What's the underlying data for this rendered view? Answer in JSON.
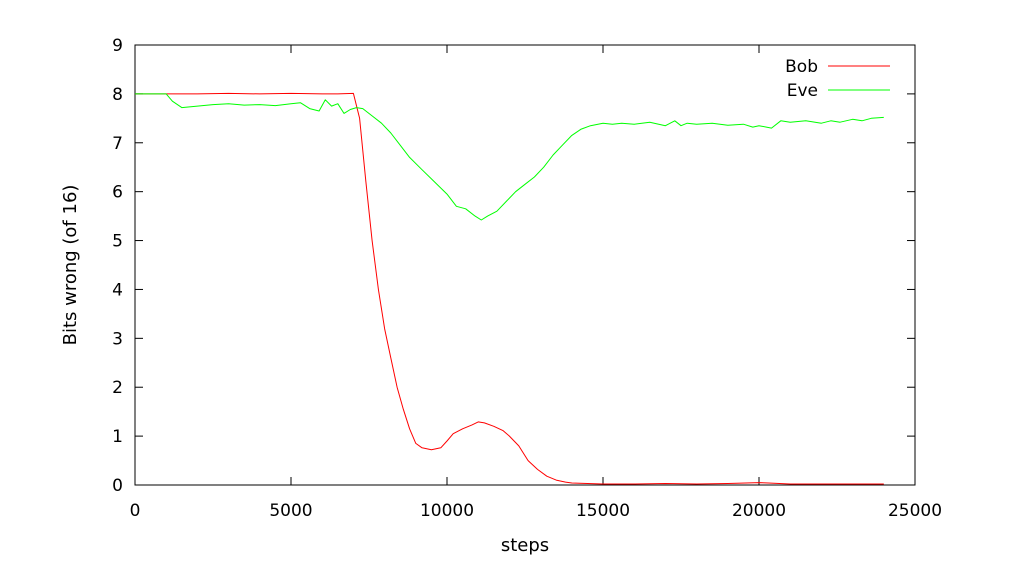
{
  "chart_data": {
    "type": "line",
    "xlabel": "steps",
    "ylabel": "Bits wrong (of 16)",
    "xlim": [
      0,
      25000
    ],
    "ylim": [
      0,
      9
    ],
    "xticks": [
      "0",
      "5000",
      "10000",
      "15000",
      "20000",
      "25000"
    ],
    "yticks": [
      "0",
      "1",
      "2",
      "3",
      "4",
      "5",
      "6",
      "7",
      "8",
      "9"
    ],
    "grid": false,
    "legend_position": "top-right",
    "series": [
      {
        "name": "Bob",
        "color": "#ff0000",
        "x": [
          0,
          1000,
          2000,
          3000,
          4000,
          5000,
          6000,
          6500,
          7000,
          7200,
          7400,
          7600,
          7800,
          8000,
          8200,
          8400,
          8600,
          8800,
          9000,
          9200,
          9500,
          9800,
          10000,
          10200,
          10500,
          10800,
          11000,
          11200,
          11500,
          11800,
          12000,
          12300,
          12600,
          12900,
          13200,
          13500,
          13800,
          14000,
          14500,
          15000,
          16000,
          17000,
          18000,
          19000,
          20000,
          20300,
          21000,
          22000,
          23000,
          24000
        ],
        "y": [
          8,
          8,
          8,
          8.01,
          8,
          8.01,
          8,
          8,
          8.01,
          7.5,
          6.2,
          5.0,
          4.0,
          3.2,
          2.6,
          2.0,
          1.55,
          1.15,
          0.85,
          0.76,
          0.72,
          0.76,
          0.9,
          1.05,
          1.15,
          1.23,
          1.29,
          1.27,
          1.2,
          1.11,
          1.0,
          0.8,
          0.5,
          0.32,
          0.18,
          0.1,
          0.06,
          0.04,
          0.03,
          0.02,
          0.02,
          0.03,
          0.02,
          0.03,
          0.05,
          0.04,
          0.02,
          0.02,
          0.02,
          0.02
        ]
      },
      {
        "name": "Eve",
        "color": "#00ff00",
        "x": [
          0,
          500,
          1000,
          1200,
          1500,
          2000,
          2500,
          3000,
          3500,
          4000,
          4500,
          5000,
          5300,
          5600,
          5900,
          6100,
          6300,
          6500,
          6700,
          6900,
          7100,
          7300,
          7600,
          7900,
          8200,
          8500,
          8800,
          9200,
          9600,
          10000,
          10300,
          10600,
          10900,
          11100,
          11300,
          11600,
          11900,
          12200,
          12500,
          12800,
          13100,
          13400,
          13700,
          14000,
          14300,
          14600,
          15000,
          15300,
          15600,
          16000,
          16500,
          17000,
          17300,
          17500,
          17700,
          18000,
          18500,
          19000,
          19500,
          19800,
          20000,
          20400,
          20700,
          21000,
          21500,
          22000,
          22300,
          22600,
          23000,
          23300,
          23600,
          24000
        ],
        "y": [
          8,
          8,
          8,
          7.85,
          7.72,
          7.75,
          7.78,
          7.8,
          7.77,
          7.78,
          7.76,
          7.8,
          7.82,
          7.7,
          7.65,
          7.88,
          7.75,
          7.8,
          7.6,
          7.68,
          7.72,
          7.7,
          7.55,
          7.4,
          7.2,
          6.95,
          6.7,
          6.45,
          6.2,
          5.95,
          5.7,
          5.65,
          5.5,
          5.42,
          5.5,
          5.6,
          5.8,
          6.0,
          6.15,
          6.3,
          6.5,
          6.75,
          6.95,
          7.15,
          7.28,
          7.35,
          7.4,
          7.38,
          7.4,
          7.38,
          7.42,
          7.35,
          7.45,
          7.35,
          7.4,
          7.38,
          7.4,
          7.36,
          7.38,
          7.32,
          7.35,
          7.3,
          7.45,
          7.42,
          7.45,
          7.4,
          7.45,
          7.42,
          7.48,
          7.45,
          7.5,
          7.52
        ]
      }
    ]
  }
}
